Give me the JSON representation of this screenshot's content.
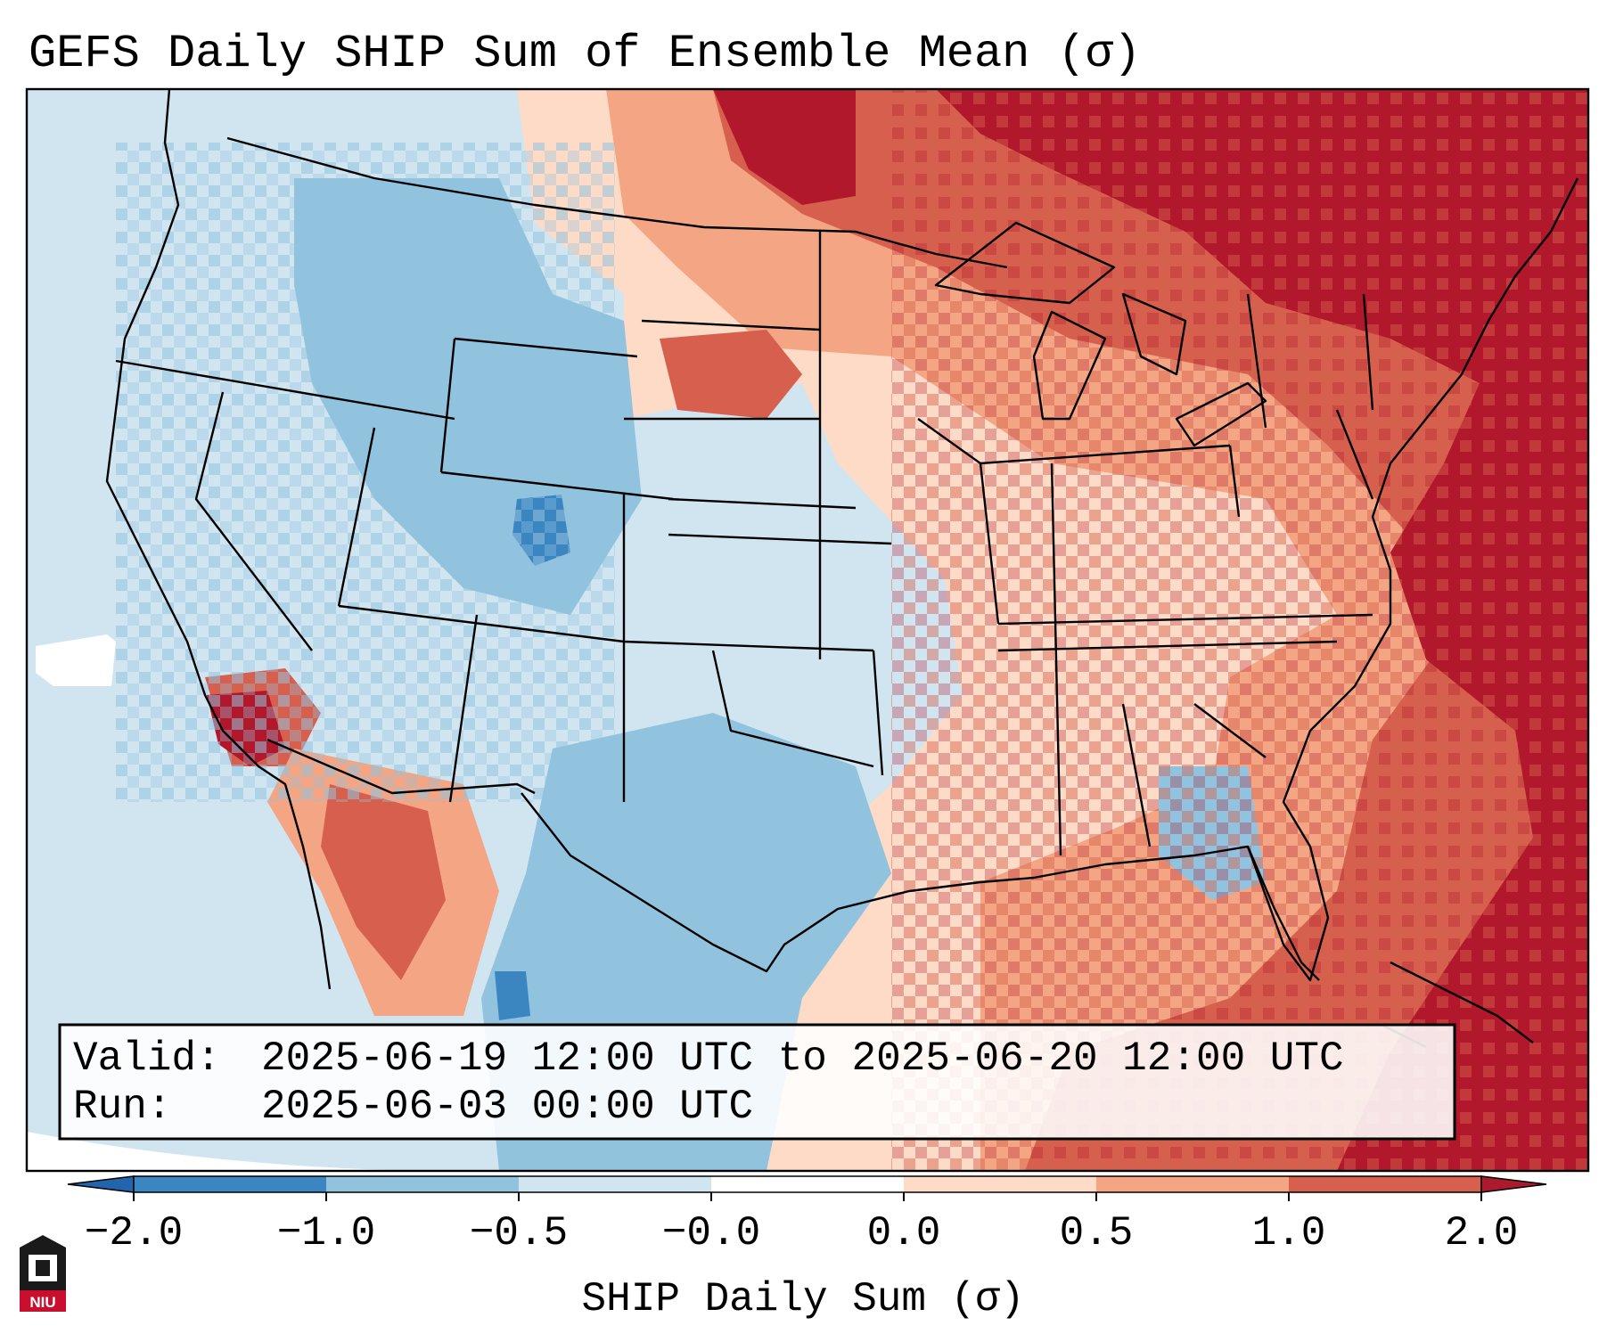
{
  "title": "GEFS Daily SHIP Sum of Ensemble Mean (σ)",
  "info_box": {
    "valid_label": "Valid:",
    "valid_value": "2025-06-19 12:00 UTC to 2025-06-20 12:00 UTC",
    "run_label": "Run:",
    "run_value": "2025-06-03 00:00 UTC"
  },
  "colorbar": {
    "label": "SHIP Daily Sum (σ)",
    "ticks": [
      "−2.0",
      "−1.0",
      "−0.5",
      "−0.0",
      "0.0",
      "0.5",
      "1.0",
      "2.0"
    ],
    "colors": [
      "#3b86c1",
      "#91c3de",
      "#d1e5f0",
      "#ffffff",
      "#fddbc7",
      "#f4a583",
      "#d6604d",
      "#b2182b"
    ],
    "extend_min_color": "#2166ac",
    "extend_max_color": "#ab1a2d"
  },
  "logo": {
    "text": "NIU"
  },
  "map": {
    "region": "Contiguous United States",
    "palette": {
      "neg_strong": "#3b86c1",
      "neg_mid": "#91c3de",
      "neg_weak": "#d1e5f0",
      "pos_weak": "#fddbc7",
      "pos_mid": "#f4a583",
      "pos_high": "#d6604d",
      "pos_strong": "#b2182b"
    }
  }
}
